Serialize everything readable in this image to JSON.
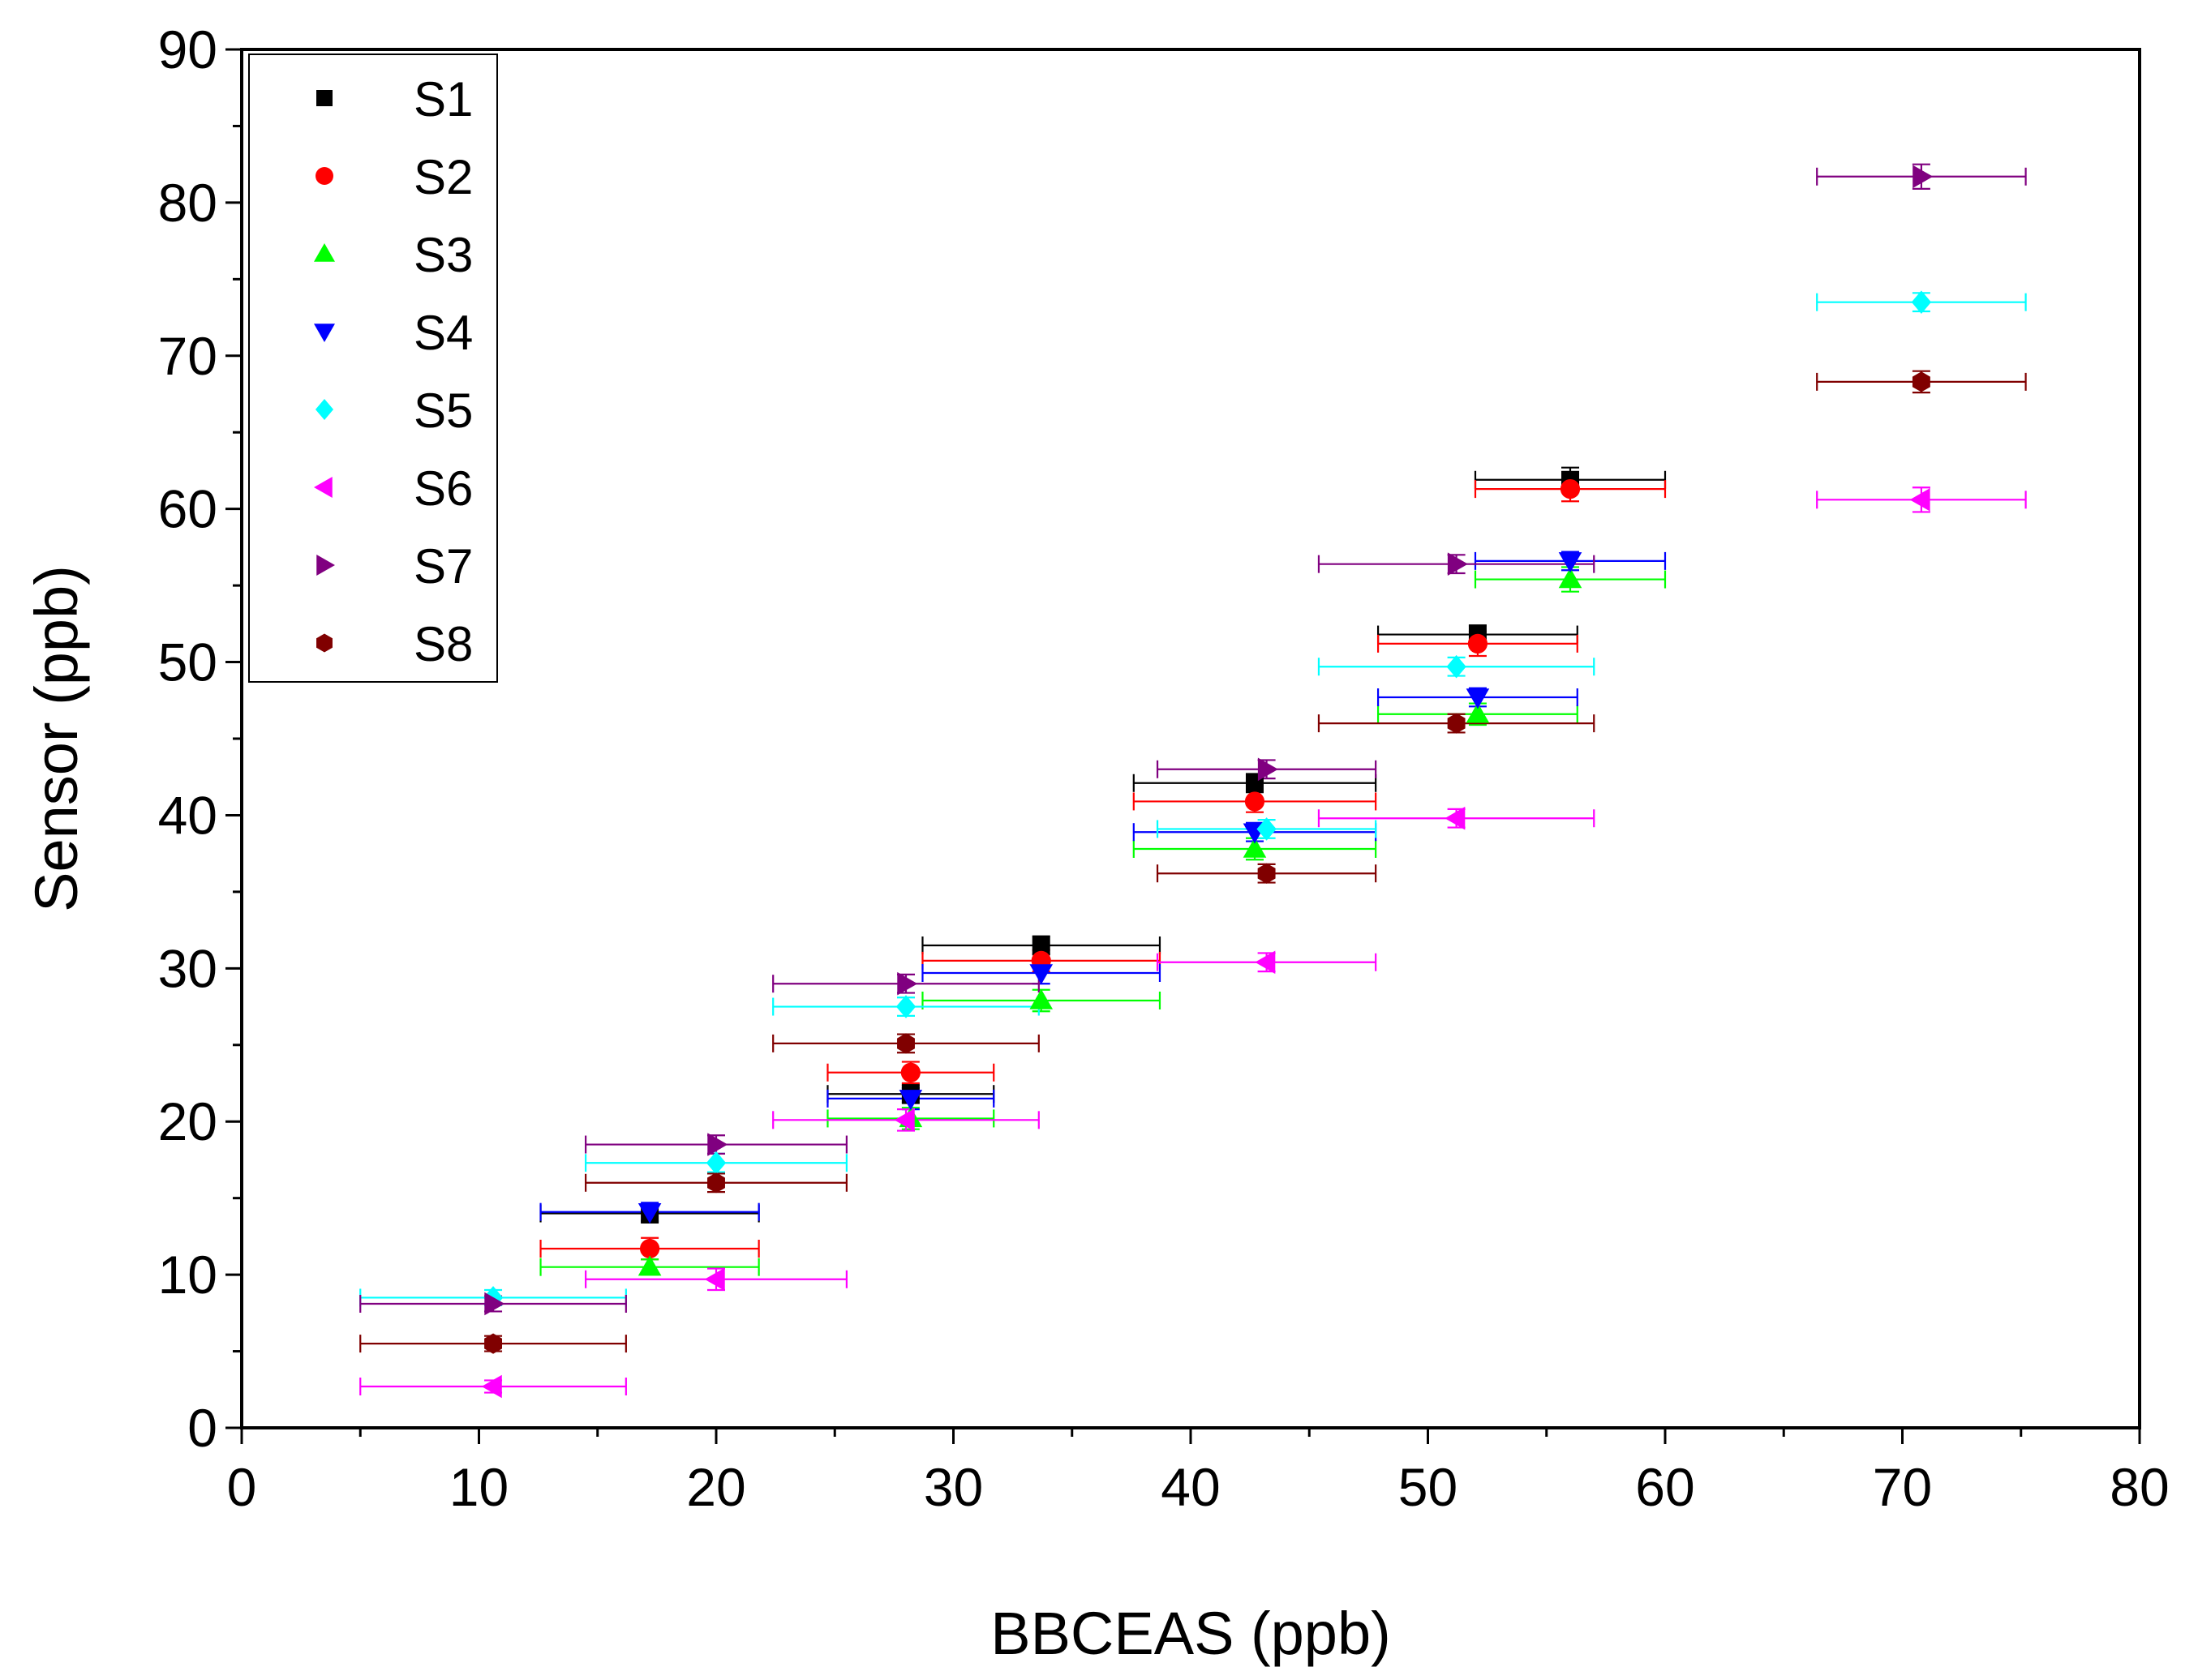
{
  "chart_data": {
    "type": "scatter",
    "title": "",
    "xlabel": "BBCEAS (ppb)",
    "ylabel": "Sensor (ppb)",
    "xlim": [
      0,
      80
    ],
    "ylim": [
      0,
      90
    ],
    "xticks": [
      "0",
      "10",
      "20",
      "30",
      "40",
      "50",
      "60",
      "70",
      "80"
    ],
    "yticks": [
      "0",
      "10",
      "20",
      "30",
      "40",
      "50",
      "60",
      "70",
      "80",
      "90"
    ],
    "grid": false,
    "legend": "top-left",
    "series": [
      {
        "name": "S1",
        "color": "#000000",
        "marker": "square",
        "points": [
          [
            17.2,
            14.0,
            4.6,
            0.6
          ],
          [
            28.2,
            21.8,
            3.5,
            0.6
          ],
          [
            33.7,
            31.5,
            5.0,
            0.6
          ],
          [
            42.7,
            42.1,
            5.1,
            0.6
          ],
          [
            52.1,
            51.8,
            4.2,
            0.6
          ],
          [
            56.0,
            61.9,
            4.0,
            0.8
          ]
        ]
      },
      {
        "name": "S2",
        "color": "#ff0000",
        "marker": "circle",
        "points": [
          [
            17.2,
            11.7,
            4.6,
            0.7
          ],
          [
            28.2,
            23.2,
            3.5,
            0.7
          ],
          [
            33.7,
            30.5,
            5.0,
            0.7
          ],
          [
            42.7,
            40.9,
            5.1,
            0.7
          ],
          [
            52.1,
            51.2,
            4.2,
            0.8
          ],
          [
            56.0,
            61.3,
            4.0,
            0.8
          ]
        ]
      },
      {
        "name": "S3",
        "color": "#00ff00",
        "marker": "triangle-up",
        "points": [
          [
            17.2,
            10.5,
            4.6,
            0.5
          ],
          [
            28.2,
            20.2,
            3.5,
            0.7
          ],
          [
            33.7,
            27.9,
            5.0,
            0.7
          ],
          [
            42.7,
            37.8,
            5.1,
            0.7
          ],
          [
            52.1,
            46.6,
            4.2,
            0.7
          ],
          [
            56.0,
            55.4,
            4.0,
            0.8
          ]
        ]
      },
      {
        "name": "S4",
        "color": "#0000ff",
        "marker": "triangle-down",
        "points": [
          [
            17.2,
            14.1,
            4.6,
            0.6
          ],
          [
            28.2,
            21.5,
            3.5,
            0.7
          ],
          [
            33.7,
            29.7,
            5.0,
            0.7
          ],
          [
            42.7,
            38.9,
            5.1,
            0.6
          ],
          [
            52.1,
            47.7,
            4.2,
            0.6
          ],
          [
            56.0,
            56.6,
            4.0,
            0.6
          ]
        ]
      },
      {
        "name": "S5",
        "color": "#00ffff",
        "marker": "diamond",
        "points": [
          [
            10.6,
            8.5,
            5.6,
            0.5
          ],
          [
            20.0,
            17.3,
            5.5,
            0.6
          ],
          [
            28.0,
            27.5,
            5.6,
            0.6
          ],
          [
            43.2,
            39.1,
            4.6,
            0.6
          ],
          [
            51.2,
            49.7,
            5.8,
            0.6
          ],
          [
            70.8,
            73.5,
            4.4,
            0.6
          ]
        ]
      },
      {
        "name": "S6",
        "color": "#ff00ff",
        "marker": "triangle-left",
        "points": [
          [
            10.6,
            2.7,
            5.6,
            0.4
          ],
          [
            20.0,
            9.7,
            5.5,
            0.7
          ],
          [
            28.0,
            20.1,
            5.6,
            0.7
          ],
          [
            43.2,
            30.4,
            4.6,
            0.6
          ],
          [
            51.2,
            39.8,
            5.8,
            0.6
          ],
          [
            70.8,
            60.6,
            4.4,
            0.8
          ]
        ]
      },
      {
        "name": "S7",
        "color": "#800080",
        "marker": "triangle-right",
        "points": [
          [
            10.6,
            8.1,
            5.6,
            0.5
          ],
          [
            20.0,
            18.5,
            5.5,
            0.6
          ],
          [
            28.0,
            29.0,
            5.6,
            0.6
          ],
          [
            43.2,
            43.0,
            4.6,
            0.6
          ],
          [
            51.2,
            56.4,
            5.8,
            0.6
          ],
          [
            70.8,
            81.7,
            4.4,
            0.8
          ]
        ]
      },
      {
        "name": "S8",
        "color": "#800000",
        "marker": "hexagon",
        "points": [
          [
            10.6,
            5.5,
            5.6,
            0.5
          ],
          [
            20.0,
            16.0,
            5.5,
            0.6
          ],
          [
            28.0,
            25.1,
            5.6,
            0.6
          ],
          [
            43.2,
            36.2,
            4.6,
            0.6
          ],
          [
            51.2,
            46.0,
            5.8,
            0.6
          ],
          [
            70.8,
            68.3,
            4.4,
            0.7
          ]
        ]
      }
    ]
  }
}
